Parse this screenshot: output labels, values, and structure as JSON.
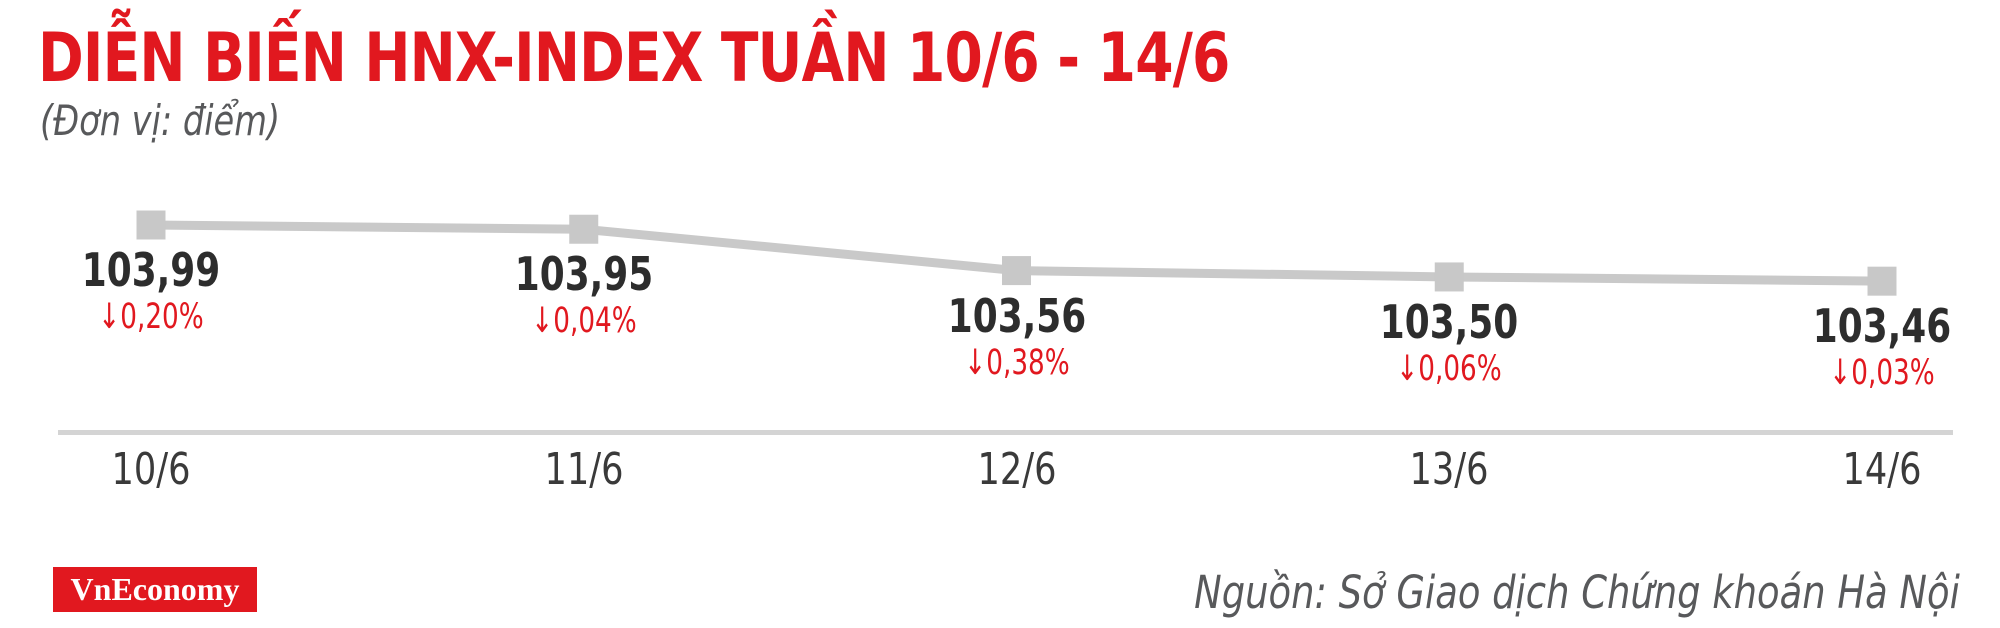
{
  "header": {
    "title": "DIỄN BIẾN HNX-INDEX TUẦN 10/6 - 14/6",
    "subtitle": "(Đơn vị: điểm)"
  },
  "chart_data": {
    "type": "line",
    "title": "DIỄN BIẾN HNX-INDEX TUẦN 10/6 - 14/6",
    "unit_label": "(Đơn vị: điểm)",
    "categories": [
      "10/6",
      "11/6",
      "12/6",
      "13/6",
      "14/6"
    ],
    "values": [
      103.99,
      103.95,
      103.56,
      103.5,
      103.46
    ],
    "value_labels": [
      "103,99",
      "103,95",
      "103,56",
      "103,50",
      "103,46"
    ],
    "change_labels": [
      "↓0,20%",
      "↓0,04%",
      "↓0,38%",
      "↓0,06%",
      "↓0,03%"
    ],
    "ylim": [
      103.4,
      104.05
    ],
    "marker_shape": "square",
    "grid": false,
    "legend": false,
    "colors": {
      "line": "#c9c9c9",
      "marker": "#c8c8c8",
      "value_text": "#2d2d2d",
      "change_text": "#e1181f",
      "axis": "#d4d4d4"
    }
  },
  "footer": {
    "logo_text": "VnEconomy",
    "source": "Nguồn: Sở Giao dịch Chứng khoán Hà Nội"
  },
  "colors": {
    "accent_red": "#e1181f",
    "muted_gray": "#58595b"
  }
}
